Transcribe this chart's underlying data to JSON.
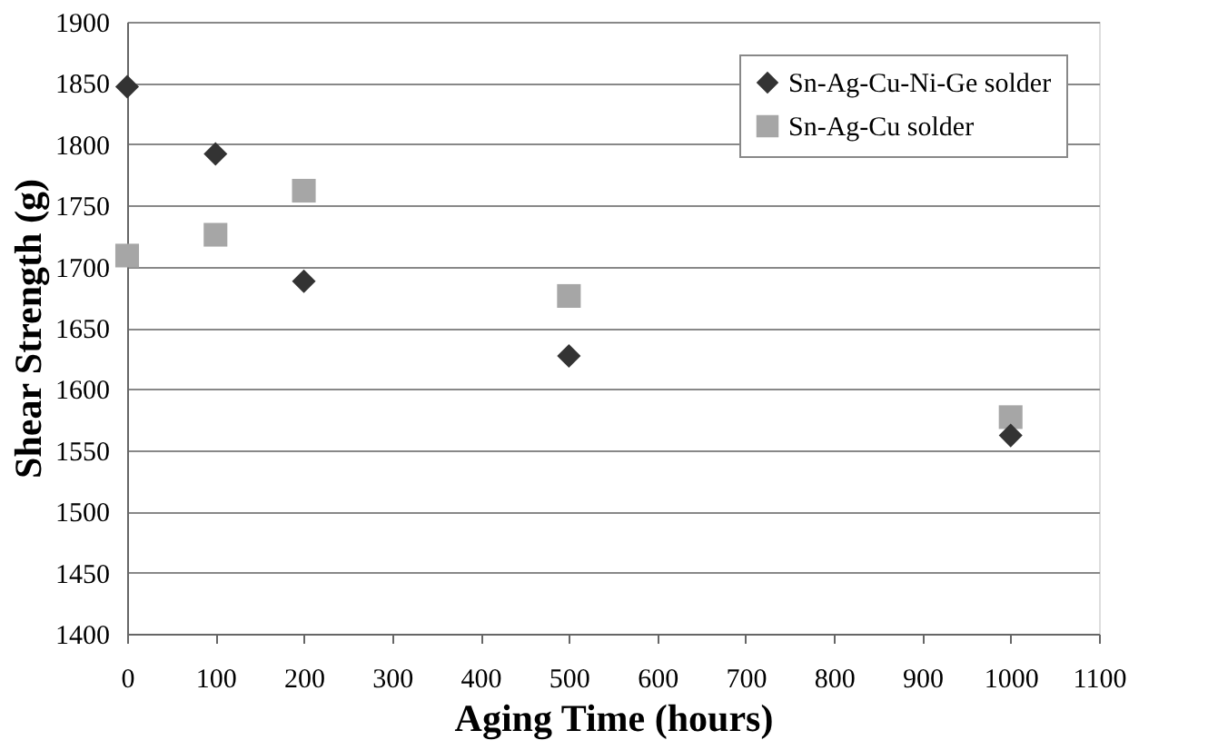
{
  "chart_data": {
    "type": "scatter",
    "xlabel": "Aging Time (hours)",
    "ylabel": "Shear Strength (g)",
    "x": [
      0,
      100,
      200,
      500,
      1000
    ],
    "series": [
      {
        "name": "Sn-Ag-Cu-Ni-Ge solder",
        "color": "#333333",
        "marker": "diamond",
        "values": [
          1847,
          1792,
          1688,
          1627,
          1562
        ]
      },
      {
        "name": "Sn-Ag-Cu solder",
        "color": "#a6a6a6",
        "marker": "square",
        "values": [
          1709,
          1726,
          1762,
          1676,
          1577
        ]
      }
    ],
    "xlim": [
      0,
      1100
    ],
    "xticks": [
      0,
      100,
      200,
      300,
      400,
      500,
      600,
      700,
      800,
      900,
      1000,
      1100
    ],
    "ylim": [
      1400,
      1900
    ],
    "yticks": [
      1400,
      1450,
      1500,
      1550,
      1600,
      1650,
      1700,
      1750,
      1800,
      1850,
      1900
    ],
    "grid": "y",
    "legend": "top right"
  }
}
